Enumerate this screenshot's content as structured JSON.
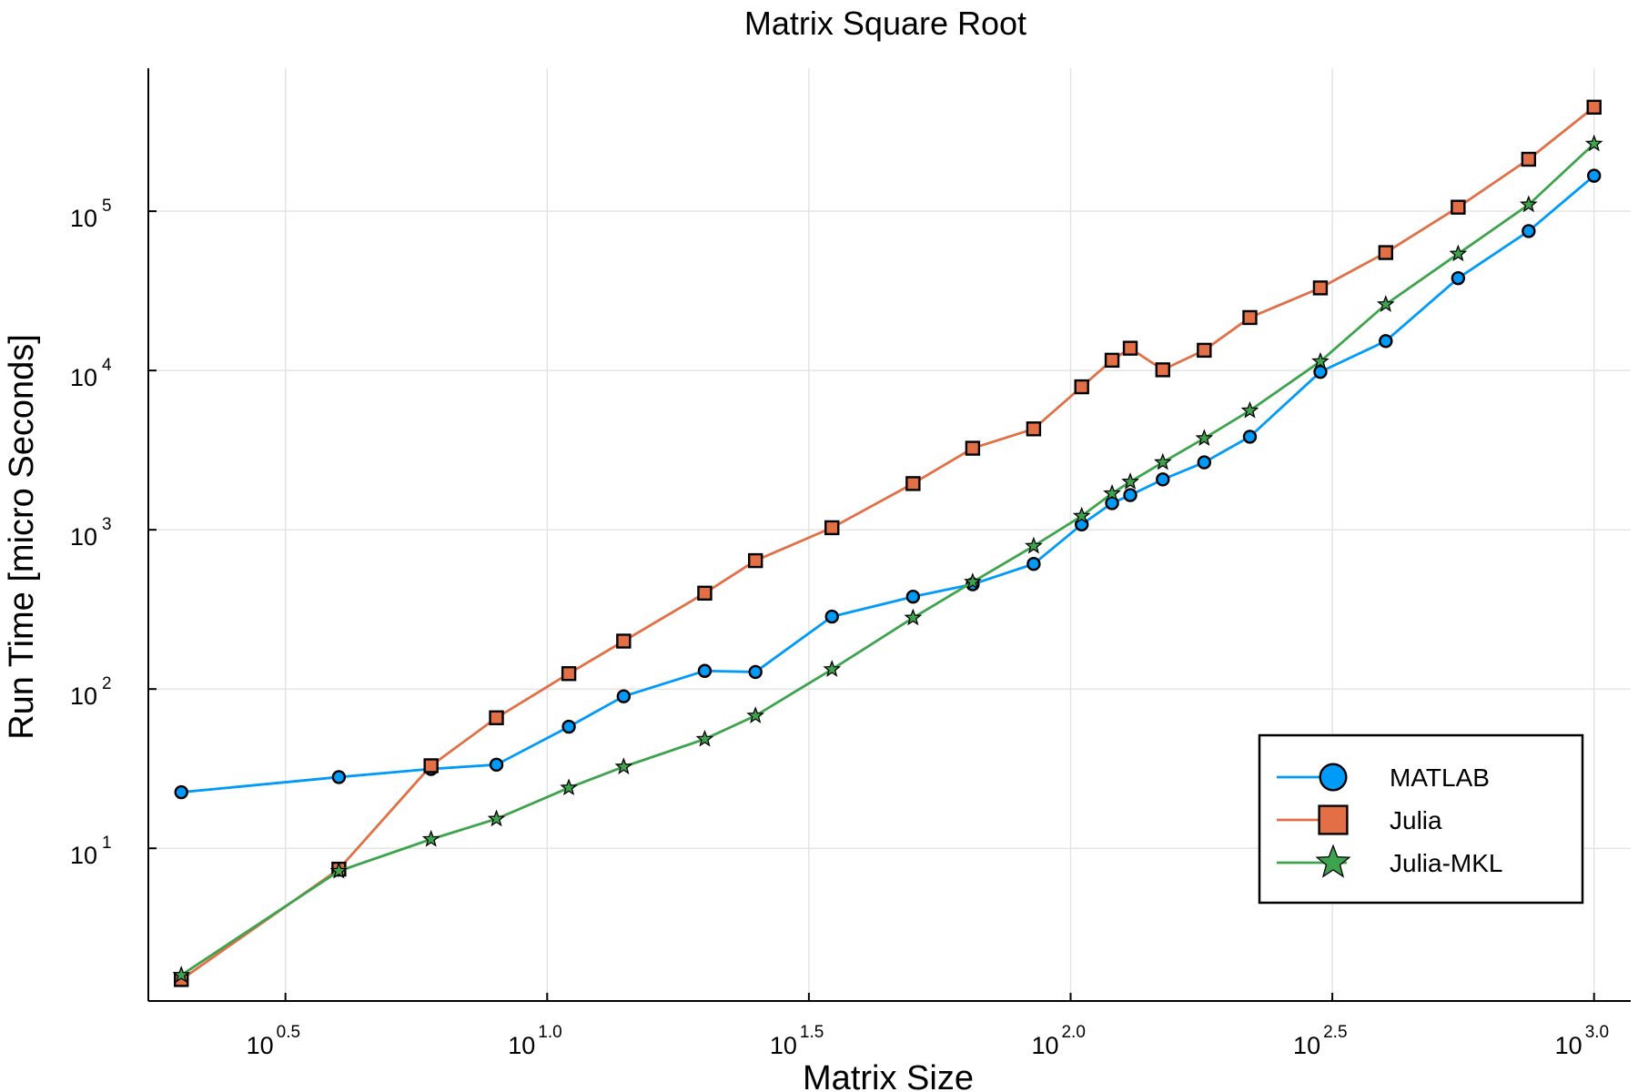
{
  "chart_data": {
    "type": "line",
    "title": "Matrix Square Root",
    "xlabel": "Matrix Size",
    "ylabel": "Run Time  [micro Seconds]",
    "x_scale": "log10",
    "y_scale": "log10",
    "xlim": [
      1.73,
      1175
    ],
    "ylim": [
      1.1,
      790000
    ],
    "grid": true,
    "legend_position": "bottom-right",
    "x_ticks": [
      {
        "value": 3.1623,
        "base": "10",
        "exp": "0.5"
      },
      {
        "value": 10,
        "base": "10",
        "exp": "1.0"
      },
      {
        "value": 31.623,
        "base": "10",
        "exp": "1.5"
      },
      {
        "value": 100,
        "base": "10",
        "exp": "2.0"
      },
      {
        "value": 316.23,
        "base": "10",
        "exp": "2.5"
      },
      {
        "value": 1000,
        "base": "10",
        "exp": "3.0"
      }
    ],
    "y_ticks": [
      {
        "value": 10,
        "base": "10",
        "exp": "1"
      },
      {
        "value": 100,
        "base": "10",
        "exp": "2"
      },
      {
        "value": 1000,
        "base": "10",
        "exp": "3"
      },
      {
        "value": 10000,
        "base": "10",
        "exp": "4"
      },
      {
        "value": 100000,
        "base": "10",
        "exp": "5"
      }
    ],
    "x": [
      2,
      4,
      6,
      8,
      11,
      14,
      20,
      25,
      35,
      50,
      65,
      85,
      105,
      120,
      130,
      150,
      180,
      220,
      300,
      400,
      550,
      750,
      1000
    ],
    "series": [
      {
        "name": "MATLAB",
        "color": "#009af9",
        "marker": "circle",
        "values": [
          22.5,
          28,
          31.5,
          33.5,
          58,
          90,
          130,
          128,
          285,
          380,
          455,
          610,
          1080,
          1470,
          1650,
          2070,
          2650,
          3840,
          9800,
          15300,
          38000,
          75000,
          167000
        ]
      },
      {
        "name": "Julia",
        "color": "#e26f46",
        "marker": "square",
        "values": [
          1.5,
          7.4,
          33,
          66,
          125,
          200,
          400,
          640,
          1030,
          1950,
          3250,
          4300,
          7900,
          11600,
          13800,
          10100,
          13400,
          21500,
          33000,
          55000,
          106000,
          212000,
          450000
        ]
      },
      {
        "name": "Julia-MKL",
        "color": "#3da44d",
        "marker": "star",
        "values": [
          1.6,
          7.2,
          11.4,
          15.3,
          24,
          32.5,
          48.5,
          68,
          133,
          280,
          470,
          790,
          1220,
          1690,
          2000,
          2650,
          3750,
          5600,
          11400,
          26000,
          54000,
          110000,
          265000
        ]
      }
    ]
  }
}
